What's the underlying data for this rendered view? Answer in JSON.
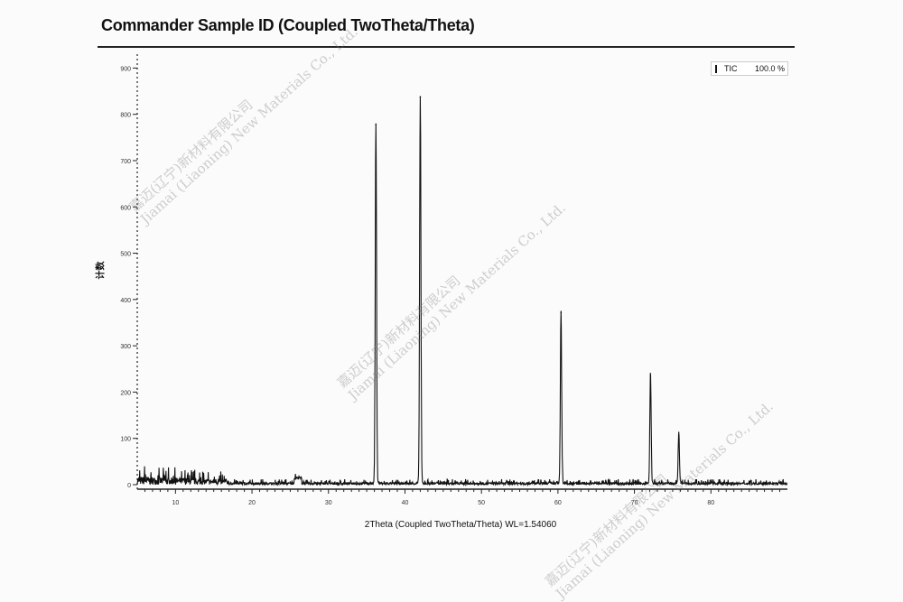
{
  "chart_data": {
    "type": "line",
    "title": "Commander Sample ID (Coupled TwoTheta/Theta)",
    "xlabel": "2Theta (Coupled TwoTheta/Theta) WL=1.54060",
    "ylabel": "计数",
    "xlim": [
      5,
      90
    ],
    "ylim": [
      0,
      930
    ],
    "xticks": [
      10,
      20,
      30,
      40,
      50,
      60,
      70,
      80
    ],
    "yticks": [
      0,
      100,
      200,
      300,
      400,
      500,
      600,
      700,
      800,
      900
    ],
    "grid": false,
    "legend_position": "top-right",
    "series": [
      {
        "name": "TIC",
        "legend_value": "100.0 %",
        "color": "#111111",
        "peaks": [
          {
            "x": 36.2,
            "y": 778
          },
          {
            "x": 42.0,
            "y": 838
          },
          {
            "x": 60.4,
            "y": 372
          },
          {
            "x": 72.1,
            "y": 240
          },
          {
            "x": 75.8,
            "y": 107
          }
        ],
        "background_noise_level": {
          "x_range_5_to_17": 30,
          "x_range_17_to_90": 8
        }
      }
    ]
  },
  "watermark": {
    "line1": "嘉迈(辽宁)新材料有限公司",
    "line2": "Jiamai (Liaoning) New Materials Co., Ltd."
  }
}
